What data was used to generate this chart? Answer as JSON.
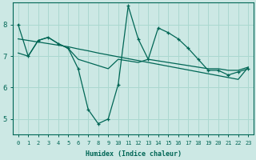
{
  "xlabel": "Humidex (Indice chaleur)",
  "background_color": "#cce8e4",
  "grid_color": "#aad8d0",
  "line_color": "#006655",
  "xlim": [
    -0.5,
    23.5
  ],
  "ylim": [
    4.5,
    8.7
  ],
  "yticks": [
    5,
    6,
    7,
    8
  ],
  "xticks": [
    0,
    1,
    2,
    3,
    4,
    5,
    6,
    7,
    8,
    9,
    10,
    11,
    12,
    13,
    14,
    15,
    16,
    17,
    18,
    19,
    20,
    21,
    22,
    23
  ],
  "s1_x": [
    0,
    1,
    2,
    3,
    4,
    5,
    6,
    7,
    8,
    9,
    10,
    11,
    12,
    13,
    14,
    15,
    16,
    17,
    18,
    19,
    20,
    21,
    22,
    23
  ],
  "s1_y": [
    8.0,
    7.0,
    7.5,
    7.6,
    7.4,
    7.25,
    6.6,
    5.3,
    4.85,
    5.0,
    6.1,
    8.6,
    7.55,
    6.9,
    7.9,
    7.75,
    7.55,
    7.25,
    6.9,
    6.55,
    6.55,
    6.4,
    6.5,
    6.6
  ],
  "s2_x": [
    0,
    1,
    2,
    3,
    4,
    5,
    6,
    7,
    8,
    9,
    10,
    11,
    12,
    13,
    14,
    15,
    16,
    17,
    18,
    19,
    20,
    21,
    22,
    23
  ],
  "s2_y": [
    7.55,
    7.5,
    7.45,
    7.4,
    7.35,
    7.3,
    7.23,
    7.17,
    7.1,
    7.04,
    6.98,
    6.92,
    6.86,
    6.8,
    6.74,
    6.68,
    6.62,
    6.56,
    6.5,
    6.44,
    6.38,
    6.32,
    6.26,
    6.65
  ],
  "s3_x": [
    0,
    1,
    2,
    3,
    4,
    5,
    6,
    7,
    8,
    9,
    10,
    11,
    12,
    13,
    14,
    15,
    16,
    17,
    18,
    19,
    20,
    21,
    22,
    23
  ],
  "s3_y": [
    7.1,
    7.0,
    7.5,
    7.6,
    7.4,
    7.25,
    6.9,
    6.8,
    6.7,
    6.6,
    6.9,
    6.85,
    6.8,
    6.9,
    6.85,
    6.8,
    6.75,
    6.7,
    6.65,
    6.6,
    6.6,
    6.55,
    6.55,
    6.65
  ]
}
